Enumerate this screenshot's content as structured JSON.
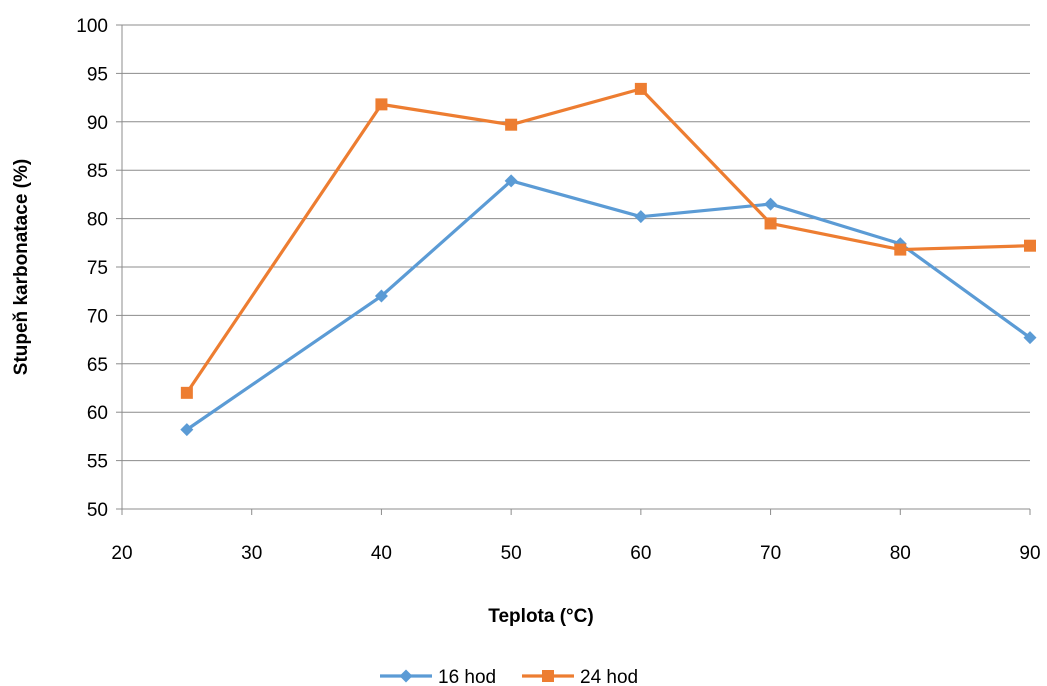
{
  "chart_data": {
    "type": "line",
    "xlabel": "Teplota (°C)",
    "ylabel": "Stupeň karbonatace (%)",
    "xlim": [
      20,
      90
    ],
    "ylim": [
      50,
      100
    ],
    "x_ticks": [
      "20",
      "30",
      "40",
      "50",
      "60",
      "70",
      "80",
      "90"
    ],
    "y_ticks": [
      "50",
      "55",
      "60",
      "65",
      "70",
      "75",
      "80",
      "85",
      "90",
      "95",
      "100"
    ],
    "grid": "horizontal",
    "legend_position": "bottom",
    "series": [
      {
        "name": "16 hod",
        "color": "#5B9BD5",
        "marker": "diamond",
        "points": [
          {
            "x": 25,
            "y": 58.2
          },
          {
            "x": 40,
            "y": 72.0
          },
          {
            "x": 50,
            "y": 83.9
          },
          {
            "x": 60,
            "y": 80.2
          },
          {
            "x": 70,
            "y": 81.5
          },
          {
            "x": 80,
            "y": 77.4
          },
          {
            "x": 90,
            "y": 67.7
          }
        ]
      },
      {
        "name": "24 hod",
        "color": "#ED7D31",
        "marker": "square",
        "points": [
          {
            "x": 25,
            "y": 62.0
          },
          {
            "x": 40,
            "y": 91.8
          },
          {
            "x": 50,
            "y": 89.7
          },
          {
            "x": 60,
            "y": 93.4
          },
          {
            "x": 70,
            "y": 79.5
          },
          {
            "x": 80,
            "y": 76.8
          },
          {
            "x": 90,
            "y": 77.2
          }
        ]
      }
    ]
  }
}
